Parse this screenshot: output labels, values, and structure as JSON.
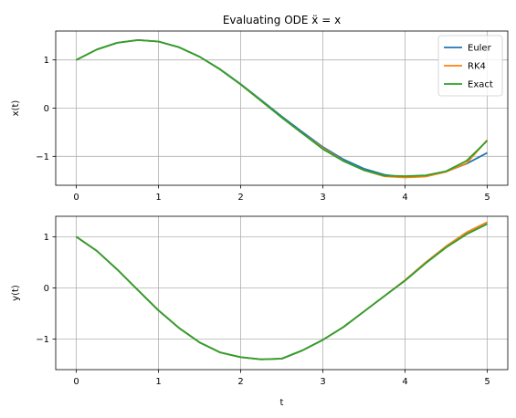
{
  "chart_data": [
    {
      "type": "line",
      "title": "Evaluating ODE ẍ = x",
      "xlabel": "",
      "ylabel": "x(t)",
      "xlim": [
        -0.25,
        5.25
      ],
      "ylim": [
        -1.6,
        1.6
      ],
      "xticks": [
        0,
        1,
        2,
        3,
        4,
        5
      ],
      "xtick_labels": [
        "0",
        "1",
        "2",
        "3",
        "4",
        "5"
      ],
      "yticks": [
        -1,
        0,
        1
      ],
      "ytick_labels": [
        "−1",
        "0",
        "1"
      ],
      "grid": true,
      "legend": "top-right",
      "x": [
        0,
        0.25,
        0.5,
        0.75,
        1,
        1.25,
        1.5,
        1.75,
        2,
        2.25,
        2.5,
        2.75,
        3,
        3.25,
        3.5,
        3.75,
        4,
        4.25,
        4.5,
        4.75,
        5
      ],
      "series": [
        {
          "name": "Euler",
          "color": "#1f77b4",
          "values": [
            1.0,
            1.2163,
            1.357,
            1.4134,
            1.3816,
            1.2637,
            1.0681,
            0.8084,
            0.5006,
            0.1661,
            -0.1723,
            -0.4935,
            -0.8063,
            -1.062,
            -1.2563,
            -1.3821,
            -1.434,
            -1.4131,
            -1.3169,
            -1.1507,
            -0.9269
          ]
        },
        {
          "name": "RK4",
          "color": "#ff7f0e",
          "values": [
            1.0,
            1.2163,
            1.357,
            1.4134,
            1.3817,
            1.2638,
            1.067,
            0.804,
            0.4922,
            0.1514,
            -0.1941,
            -0.5228,
            -0.828,
            -1.094,
            -1.288,
            -1.415,
            -1.438,
            -1.42,
            -1.32,
            -1.14,
            -0.66
          ]
        },
        {
          "name": "Exact",
          "color": "#2ca02c",
          "values": [
            1.0,
            1.2163,
            1.357,
            1.4134,
            1.3818,
            1.264,
            1.0668,
            0.803,
            0.4907,
            0.1507,
            -0.1944,
            -0.522,
            -0.849,
            -1.098,
            -1.287,
            -1.4,
            -1.411,
            -1.395,
            -1.308,
            -1.09,
            -0.6752
          ]
        }
      ]
    },
    {
      "type": "line",
      "title": "",
      "xlabel": "t",
      "ylabel": "y(t)",
      "xlim": [
        -0.25,
        5.25
      ],
      "ylim": [
        -1.6,
        1.4
      ],
      "xticks": [
        0,
        1,
        2,
        3,
        4,
        5
      ],
      "xtick_labels": [
        "0",
        "1",
        "2",
        "3",
        "4",
        "5"
      ],
      "yticks": [
        -1,
        0,
        1
      ],
      "ytick_labels": [
        "−1",
        "0",
        "1"
      ],
      "grid": true,
      "x": [
        0,
        0.25,
        0.5,
        0.75,
        1,
        1.25,
        1.5,
        1.75,
        2,
        2.25,
        2.5,
        2.75,
        3,
        3.25,
        3.5,
        3.75,
        4,
        4.25,
        4.5,
        4.75,
        5
      ],
      "series": [
        {
          "name": "Euler",
          "color": "#1f77b4",
          "values": [
            1.0,
            0.7236,
            0.357,
            -0.0449,
            -0.4401,
            -0.7852,
            -1.067,
            -1.2633,
            -1.357,
            -1.399,
            -1.386,
            -1.225,
            -1.018,
            -0.767,
            -0.463,
            -0.159,
            0.148,
            0.494,
            0.812,
            1.086,
            1.283
          ]
        },
        {
          "name": "RK4",
          "color": "#ff7f0e",
          "values": [
            1.0,
            0.7236,
            0.357,
            -0.0449,
            -0.4401,
            -0.7852,
            -1.067,
            -1.2633,
            -1.357,
            -1.399,
            -1.386,
            -1.225,
            -1.018,
            -0.767,
            -0.463,
            -0.159,
            0.148,
            0.494,
            0.812,
            1.086,
            1.283
          ]
        },
        {
          "name": "Exact",
          "color": "#2ca02c",
          "values": [
            1.0,
            0.7236,
            0.357,
            -0.0449,
            -0.4401,
            -0.7852,
            -1.067,
            -1.2633,
            -1.357,
            -1.399,
            -1.386,
            -1.225,
            -1.018,
            -0.767,
            -0.463,
            -0.159,
            0.14,
            0.48,
            0.79,
            1.05,
            1.25
          ]
        }
      ]
    }
  ]
}
